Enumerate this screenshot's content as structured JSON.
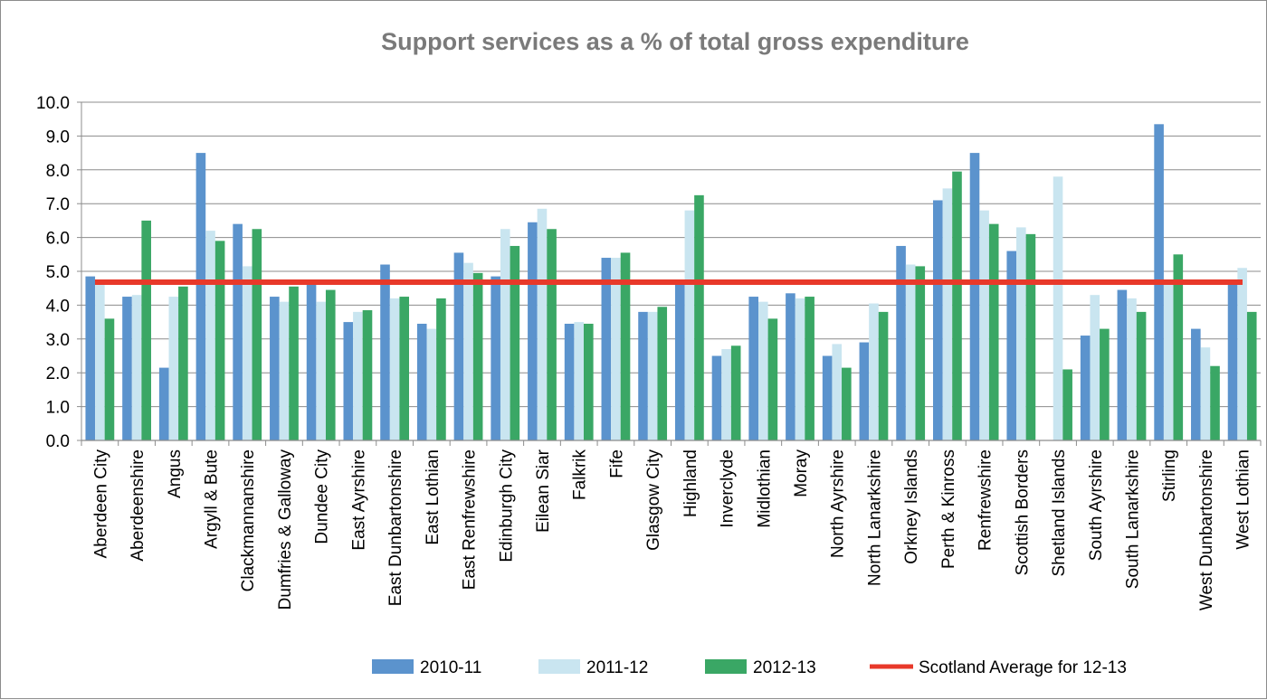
{
  "chart_data": {
    "type": "bar",
    "title": "Support services as a % of total gross expenditure",
    "xlabel": "",
    "ylabel": "",
    "ylim": [
      0,
      10
    ],
    "yticks": [
      "0.0",
      "1.0",
      "2.0",
      "3.0",
      "4.0",
      "5.0",
      "6.0",
      "7.0",
      "8.0",
      "9.0",
      "10.0"
    ],
    "grid": true,
    "legend_position": "bottom",
    "categories": [
      "Aberdeen City",
      "Aberdeenshire",
      "Angus",
      "Argyll & Bute",
      "Clackmannanshire",
      "Dumfries & Galloway",
      "Dundee City",
      "East Ayrshire",
      "East Dunbartonshire",
      "East Lothian",
      "East Renfrewshire",
      "Edinburgh City",
      "Eilean Siar",
      "Falkrik",
      "Fife",
      "Glasgow City",
      "Highland",
      "Inverclyde",
      "Midlothian",
      "Moray",
      "North Ayrshire",
      "North Lanarkshire",
      "Orkney Islands",
      "Perth & Kinross",
      "Renfrewshire",
      "Scottish Borders",
      "Shetland Islands",
      "South Ayrshire",
      "South Lanarkshire",
      "Stirling",
      "West Dunbartonshire",
      "West Lothian"
    ],
    "series": [
      {
        "name": "2010-11",
        "color": "#5b93cd",
        "values": [
          4.85,
          4.25,
          2.15,
          8.5,
          6.4,
          4.25,
          4.6,
          3.5,
          5.2,
          3.45,
          5.55,
          4.85,
          6.45,
          3.45,
          5.4,
          3.8,
          4.65,
          2.5,
          4.25,
          4.35,
          2.5,
          2.9,
          5.75,
          7.1,
          8.5,
          5.6,
          0,
          3.1,
          4.45,
          9.35,
          3.3,
          4.65
        ]
      },
      {
        "name": "2011-12",
        "color": "#c9e5f0",
        "values": [
          4.65,
          4.3,
          4.25,
          6.2,
          5.15,
          4.1,
          4.1,
          3.8,
          4.2,
          3.3,
          5.25,
          6.25,
          6.85,
          3.5,
          5.4,
          3.8,
          6.8,
          2.7,
          4.1,
          4.2,
          2.85,
          4.05,
          5.2,
          7.45,
          6.8,
          6.3,
          7.8,
          4.3,
          4.2,
          4.6,
          2.75,
          5.1
        ]
      },
      {
        "name": "2012-13",
        "color": "#3aa765",
        "values": [
          3.6,
          6.5,
          4.55,
          5.9,
          6.25,
          4.55,
          4.45,
          3.85,
          4.25,
          4.2,
          4.95,
          5.75,
          6.25,
          3.45,
          5.55,
          3.95,
          7.25,
          2.8,
          3.6,
          4.25,
          2.15,
          3.8,
          5.15,
          7.95,
          6.4,
          6.1,
          2.1,
          3.3,
          3.8,
          5.5,
          2.2,
          3.8
        ]
      }
    ],
    "reference_line": {
      "name": "Scotland Average for 12-13",
      "value": 4.68,
      "color": "#e8392a"
    }
  }
}
